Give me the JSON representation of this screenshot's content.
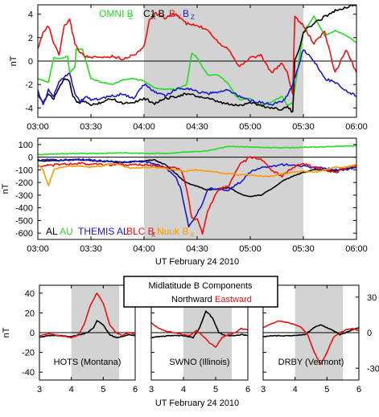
{
  "colors": {
    "black": "#000000",
    "green": "#22dd22",
    "red": "#ee1111",
    "blue": "#1a1acc",
    "orange": "#ff9900",
    "shade": "#d3d3d3"
  },
  "chart_data": [
    {
      "type": "line",
      "panel": "top",
      "ylabel": "nT",
      "xlim": [
        3.0,
        6.0
      ],
      "ylim": [
        -4.8,
        4.8
      ],
      "xticks": [
        "03:00",
        "03:30",
        "04:00",
        "04:30",
        "05:00",
        "05:30",
        "06:00"
      ],
      "yticks": [
        -4,
        -2,
        0,
        2,
        4
      ],
      "shaded": [
        4.0,
        5.5
      ],
      "legend": [
        {
          "text": "OMNI B",
          "sub": "Z",
          "color": "#22dd22"
        },
        {
          "text": "C1 B",
          "sub": "X",
          "color": "#000000"
        },
        {
          "text": "B",
          "sub": "Y",
          "color": "#ee1111"
        },
        {
          "text": "B",
          "sub": "Z",
          "color": "#1a1acc"
        }
      ],
      "series": [
        {
          "name": "OMNI B",
          "color": "#22dd22",
          "x": [
            3.0,
            3.1,
            3.15,
            3.2,
            3.28,
            3.3,
            3.35,
            3.36,
            3.42,
            3.5,
            3.6,
            3.7,
            3.8,
            3.9,
            4.0,
            4.1,
            4.2,
            4.3,
            4.4,
            4.45,
            4.5,
            4.55,
            4.6,
            4.7,
            4.8,
            4.85,
            4.9,
            5.0,
            5.1,
            5.2,
            5.3,
            5.35,
            5.4,
            5.5,
            5.6,
            5.7,
            5.8,
            5.9,
            6.0
          ],
          "y": [
            -1.5,
            -1.8,
            0.3,
            0.2,
            0.4,
            -1.0,
            -0.5,
            1.0,
            1.0,
            -1.5,
            -1.8,
            -2.0,
            -1.6,
            -1.5,
            -1.7,
            -2.3,
            -2.4,
            -2.4,
            -2.0,
            0.7,
            0.3,
            -0.5,
            -1.2,
            -1.2,
            -2.0,
            -2.8,
            -3.3,
            -3.2,
            -3.8,
            -3.5,
            -3.0,
            -3.8,
            -3.5,
            2.5,
            3.8,
            2.2,
            2.6,
            2.2,
            1.6
          ]
        },
        {
          "name": "C1 B",
          "color": "#000000",
          "x": [
            3.0,
            3.05,
            3.1,
            3.15,
            3.2,
            3.25,
            3.3,
            3.33,
            3.38,
            3.45,
            3.5,
            3.6,
            3.7,
            3.8,
            3.9,
            4.0,
            4.1,
            4.2,
            4.3,
            4.4,
            4.5,
            4.6,
            4.7,
            4.8,
            4.9,
            5.0,
            5.1,
            5.2,
            5.3,
            5.35,
            5.4,
            5.42,
            5.46,
            5.5,
            5.6,
            5.7,
            5.8,
            5.9,
            6.0
          ],
          "y": [
            -3.0,
            -3.5,
            -2.8,
            -3.2,
            -2.2,
            -1.5,
            -1.8,
            -3.0,
            -3.6,
            -3.4,
            -3.8,
            -3.5,
            -3.2,
            -3.6,
            -3.5,
            -3.2,
            -3.6,
            -3.2,
            -3.0,
            -2.8,
            -3.0,
            -3.2,
            -3.5,
            -3.7,
            -3.8,
            -3.5,
            -3.8,
            -4.0,
            -4.1,
            -3.9,
            -4.4,
            0.0,
            1.0,
            2.5,
            3.2,
            3.8,
            4.3,
            4.6,
            4.8
          ]
        },
        {
          "name": "B",
          "color": "#ee1111",
          "x": [
            3.0,
            3.05,
            3.1,
            3.15,
            3.2,
            3.25,
            3.3,
            3.35,
            3.4,
            3.45,
            3.5,
            3.6,
            3.7,
            3.8,
            3.9,
            4.0,
            4.05,
            4.1,
            4.2,
            4.3,
            4.4,
            4.5,
            4.6,
            4.7,
            4.8,
            4.9,
            5.0,
            5.1,
            5.2,
            5.3,
            5.35,
            5.4,
            5.42,
            5.5,
            5.6,
            5.7,
            5.8,
            5.9,
            6.0
          ],
          "y": [
            1.0,
            2.5,
            3.0,
            1.5,
            0.5,
            3.0,
            3.5,
            1.5,
            0.7,
            0.4,
            0.3,
            0.3,
            0.4,
            0.2,
            0.5,
            1.2,
            3.5,
            4.1,
            3.7,
            4.0,
            3.2,
            3.0,
            2.7,
            1.6,
            1.0,
            -0.5,
            0.3,
            0.5,
            -1.0,
            -0.2,
            -1.0,
            -2.8,
            3.8,
            3.0,
            1.5,
            2.5,
            -1.0,
            1.0,
            -1.0
          ]
        },
        {
          "name": "B",
          "color": "#1a1acc",
          "x": [
            3.0,
            3.05,
            3.1,
            3.15,
            3.2,
            3.25,
            3.3,
            3.35,
            3.4,
            3.45,
            3.5,
            3.6,
            3.7,
            3.8,
            3.9,
            4.0,
            4.1,
            4.2,
            4.3,
            4.4,
            4.5,
            4.6,
            4.7,
            4.8,
            4.9,
            5.0,
            5.1,
            5.2,
            5.3,
            5.35,
            5.4,
            5.5,
            5.6,
            5.7,
            5.8,
            5.9,
            6.0
          ],
          "y": [
            -2.5,
            -3.8,
            -2.5,
            -3.0,
            -1.8,
            -1.3,
            -1.0,
            -2.8,
            -3.5,
            -3.0,
            -3.3,
            -3.2,
            -3.0,
            -2.8,
            -3.2,
            -2.0,
            -2.6,
            -3.0,
            -2.4,
            -2.3,
            -2.6,
            -2.8,
            -2.6,
            -2.5,
            -3.0,
            -3.4,
            -3.5,
            -3.7,
            -3.4,
            -3.0,
            -2.0,
            1.0,
            0.0,
            -1.5,
            -1.8,
            -2.5,
            -3.0
          ]
        }
      ]
    },
    {
      "type": "line",
      "panel": "middle",
      "ylabel": "nT",
      "xlabel": "UT February 24 2010",
      "xlim": [
        3.0,
        6.0
      ],
      "ylim": [
        -650,
        150
      ],
      "xticks": [
        "03:00",
        "03:30",
        "04:00",
        "04:30",
        "05:00",
        "05:30",
        "06:00"
      ],
      "yticks": [
        100,
        0,
        -100,
        -200,
        -300,
        -400,
        -500,
        -600
      ],
      "shaded": [
        4.0,
        5.5
      ],
      "legend": [
        {
          "text": "AL",
          "color": "#000000"
        },
        {
          "text": "AU",
          "color": "#22dd22"
        },
        {
          "text": "THEMIS AL",
          "color": "#1a1acc"
        },
        {
          "text": "BLC B",
          "sub": "X",
          "color": "#ee1111"
        },
        {
          "text": "Nuuk B",
          "sub": "X",
          "color": "#ff9900"
        }
      ],
      "series": [
        {
          "name": "AL",
          "color": "#000000",
          "x": [
            3.0,
            3.2,
            3.4,
            3.6,
            3.8,
            4.0,
            4.1,
            4.2,
            4.3,
            4.35,
            4.4,
            4.5,
            4.6,
            4.7,
            4.8,
            4.9,
            5.0,
            5.1,
            5.2,
            5.3,
            5.4,
            5.5,
            5.6,
            5.7,
            5.8,
            5.9,
            6.0
          ],
          "y": [
            -30,
            -25,
            -20,
            -30,
            -40,
            -30,
            -20,
            -60,
            -130,
            -170,
            -200,
            -230,
            -260,
            -250,
            -240,
            -290,
            -310,
            -300,
            -250,
            -190,
            -150,
            -120,
            -100,
            -100,
            -110,
            -90,
            -80
          ]
        },
        {
          "name": "AU",
          "color": "#22dd22",
          "x": [
            3.0,
            3.2,
            3.4,
            3.6,
            3.8,
            4.0,
            4.2,
            4.4,
            4.6,
            4.7,
            4.8,
            5.0,
            5.2,
            5.4,
            5.6,
            5.8,
            6.0
          ],
          "y": [
            20,
            25,
            30,
            30,
            35,
            30,
            30,
            40,
            50,
            70,
            85,
            80,
            75,
            75,
            80,
            85,
            90
          ]
        },
        {
          "name": "THEMIS AL",
          "color": "#1a1acc",
          "x": [
            3.0,
            3.2,
            3.4,
            3.6,
            3.8,
            4.0,
            4.1,
            4.2,
            4.3,
            4.35,
            4.42,
            4.5,
            4.55,
            4.6,
            4.7,
            4.8,
            4.9,
            5.0,
            5.1,
            5.2,
            5.3,
            5.4,
            5.5,
            5.7,
            5.9,
            6.0
          ],
          "y": [
            -20,
            -25,
            -20,
            -30,
            -40,
            -30,
            -60,
            -80,
            -160,
            -260,
            -550,
            -440,
            -370,
            -250,
            -250,
            -260,
            -200,
            -120,
            -80,
            -70,
            -60,
            -60,
            -70,
            -90,
            -100,
            -80
          ]
        },
        {
          "name": "BLC B",
          "color": "#ee1111",
          "x": [
            3.0,
            3.2,
            3.4,
            3.6,
            3.8,
            4.0,
            4.1,
            4.2,
            4.3,
            4.35,
            4.4,
            4.45,
            4.5,
            4.55,
            4.6,
            4.7,
            4.8,
            4.9,
            5.0,
            5.1,
            5.2,
            5.3,
            5.4,
            5.5,
            5.6,
            5.7,
            5.8,
            5.9,
            6.0
          ],
          "y": [
            -70,
            -60,
            -50,
            -60,
            -60,
            -60,
            -70,
            -80,
            -90,
            -100,
            -250,
            -480,
            -490,
            -600,
            -420,
            -260,
            -220,
            -60,
            0,
            -10,
            -100,
            -150,
            -80,
            -50,
            -80,
            -100,
            -120,
            -80,
            -60
          ]
        },
        {
          "name": "Nuuk B",
          "color": "#ff9900",
          "x": [
            3.0,
            3.05,
            3.1,
            3.15,
            3.2,
            3.3,
            3.4,
            3.5,
            3.6,
            3.7,
            3.8,
            3.9,
            4.0,
            4.1,
            4.2,
            4.3,
            4.4,
            4.5,
            4.6,
            4.7,
            4.8,
            4.9,
            5.0,
            5.1,
            5.2,
            5.3,
            5.4,
            5.5,
            5.6,
            5.7,
            5.8,
            5.9,
            6.0
          ],
          "y": [
            -60,
            -100,
            -230,
            -100,
            -80,
            -70,
            -70,
            -80,
            -70,
            -50,
            -70,
            -90,
            -80,
            -80,
            -90,
            -100,
            -110,
            -100,
            -110,
            -120,
            -130,
            -140,
            -140,
            -150,
            -150,
            -130,
            -120,
            -110,
            -120,
            -100,
            -80,
            -80,
            -60
          ]
        }
      ]
    },
    {
      "type": "line",
      "panel": "bottom",
      "title_lines": [
        "Midlatitude B Components"
      ],
      "legend": [
        {
          "text": "Northward",
          "color": "#000000"
        },
        {
          "text": "Eastward",
          "color": "#ee1111"
        }
      ],
      "xlabel": "UT February 24 2010",
      "ylabel": "nT",
      "xlim": [
        3,
        6
      ],
      "left_ylim": [
        -48,
        48
      ],
      "left_yticks": [
        40,
        20,
        0,
        -20,
        -40
      ],
      "right_yticks": [
        30,
        0,
        -30
      ],
      "xticks": [
        3,
        4,
        5,
        6
      ],
      "shaded": [
        4.0,
        5.5
      ],
      "subplots": [
        {
          "label": "HOTS (Montana)",
          "series": [
            {
              "name": "Northward",
              "color": "#000000",
              "x": [
                3.0,
                3.3,
                3.6,
                4.0,
                4.3,
                4.5,
                4.7,
                4.8,
                5.0,
                5.2,
                5.4,
                5.6,
                5.8,
                6.0
              ],
              "y": [
                -5,
                -3,
                -3,
                -4,
                -2,
                0,
                5,
                12,
                8,
                -2,
                -5,
                -4,
                -2,
                -3
              ]
            },
            {
              "name": "Eastward",
              "color": "#ee1111",
              "x": [
                3.0,
                3.3,
                3.6,
                4.0,
                4.2,
                4.4,
                4.6,
                4.8,
                5.0,
                5.2,
                5.4,
                5.6,
                5.8,
                6.0
              ],
              "y": [
                -3,
                -1,
                -3,
                -5,
                -3,
                8,
                28,
                40,
                30,
                8,
                0,
                -3,
                0,
                -2
              ]
            }
          ]
        },
        {
          "label": "SWNO (Illinois)",
          "series": [
            {
              "name": "Northward",
              "color": "#000000",
              "x": [
                3.0,
                3.3,
                3.6,
                4.0,
                4.3,
                4.5,
                4.7,
                4.9,
                5.1,
                5.3,
                5.6,
                5.8,
                6.0
              ],
              "y": [
                -5,
                -4,
                -3,
                -3,
                -5,
                5,
                22,
                15,
                0,
                -3,
                -3,
                -2,
                -3
              ]
            },
            {
              "name": "Eastward",
              "color": "#ee1111",
              "x": [
                3.0,
                3.2,
                3.4,
                3.7,
                4.0,
                4.2,
                4.4,
                4.6,
                4.8,
                5.0,
                5.2,
                5.4,
                5.6,
                5.8,
                6.0
              ],
              "y": [
                10,
                5,
                2,
                0,
                -2,
                -3,
                2,
                -3,
                -10,
                -15,
                -5,
                -2,
                0,
                4,
                3
              ]
            }
          ]
        },
        {
          "label": "DRBY (Vermont)",
          "series": [
            {
              "name": "Northward",
              "color": "#000000",
              "x": [
                3.0,
                3.5,
                4.0,
                4.3,
                4.6,
                4.8,
                5.0,
                5.2,
                5.4,
                5.6,
                5.8,
                6.0
              ],
              "y": [
                -4,
                -3,
                -3,
                -2,
                5,
                8,
                5,
                2,
                -2,
                0,
                3,
                5
              ]
            },
            {
              "name": "Eastward",
              "color": "#ee1111",
              "x": [
                3.0,
                3.2,
                3.5,
                3.8,
                4.0,
                4.2,
                4.4,
                4.6,
                4.8,
                5.0,
                5.2,
                5.4,
                5.6,
                5.8,
                6.0
              ],
              "y": [
                5,
                8,
                12,
                10,
                8,
                5,
                -2,
                -20,
                -32,
                -20,
                -5,
                0,
                3,
                4,
                2
              ]
            }
          ]
        }
      ]
    }
  ]
}
